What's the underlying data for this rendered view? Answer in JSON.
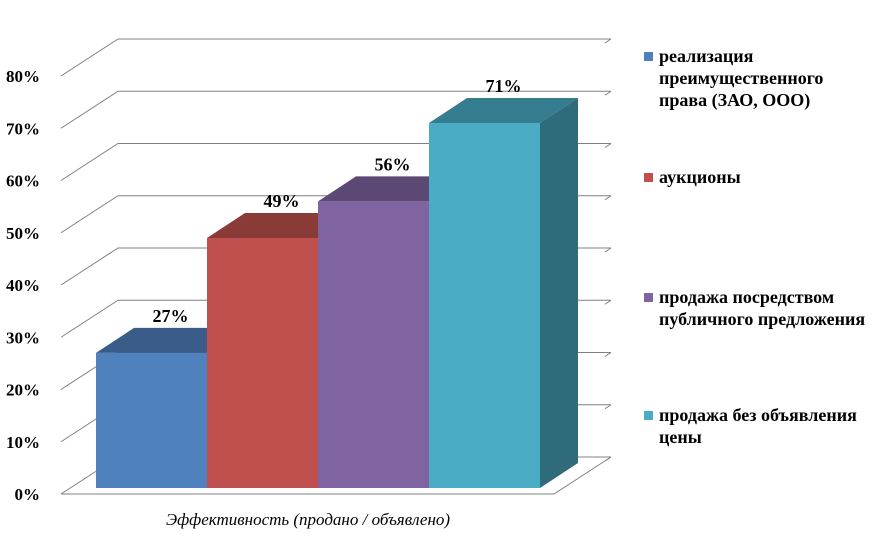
{
  "chart_data": {
    "type": "bar",
    "categories": [
      "Эффективность (продано / объявлено)"
    ],
    "series": [
      {
        "name": "реализация преимущественного права (ЗАО, ООО)",
        "values": [
          27
        ],
        "label": "27%",
        "color": "#4F81BD"
      },
      {
        "name": "аукционы",
        "values": [
          49
        ],
        "label": "49%",
        "color": "#C0504D"
      },
      {
        "name": "продажа посредством публичного предложения",
        "values": [
          56
        ],
        "label": "56%",
        "color": "#8064A2"
      },
      {
        "name": "продажа без объявления цены",
        "values": [
          71
        ],
        "label": "71%",
        "color": "#4BACC6"
      }
    ],
    "xlabel": "Эффективность (продано / объявлено)",
    "ylabel": "",
    "ylim": [
      0,
      80
    ],
    "yticks": [
      "0%",
      "10%",
      "20%",
      "30%",
      "40%",
      "50%",
      "60%",
      "70%",
      "80%"
    ],
    "grid": true,
    "legend_position": "right",
    "style": "3d-clustered-column"
  }
}
